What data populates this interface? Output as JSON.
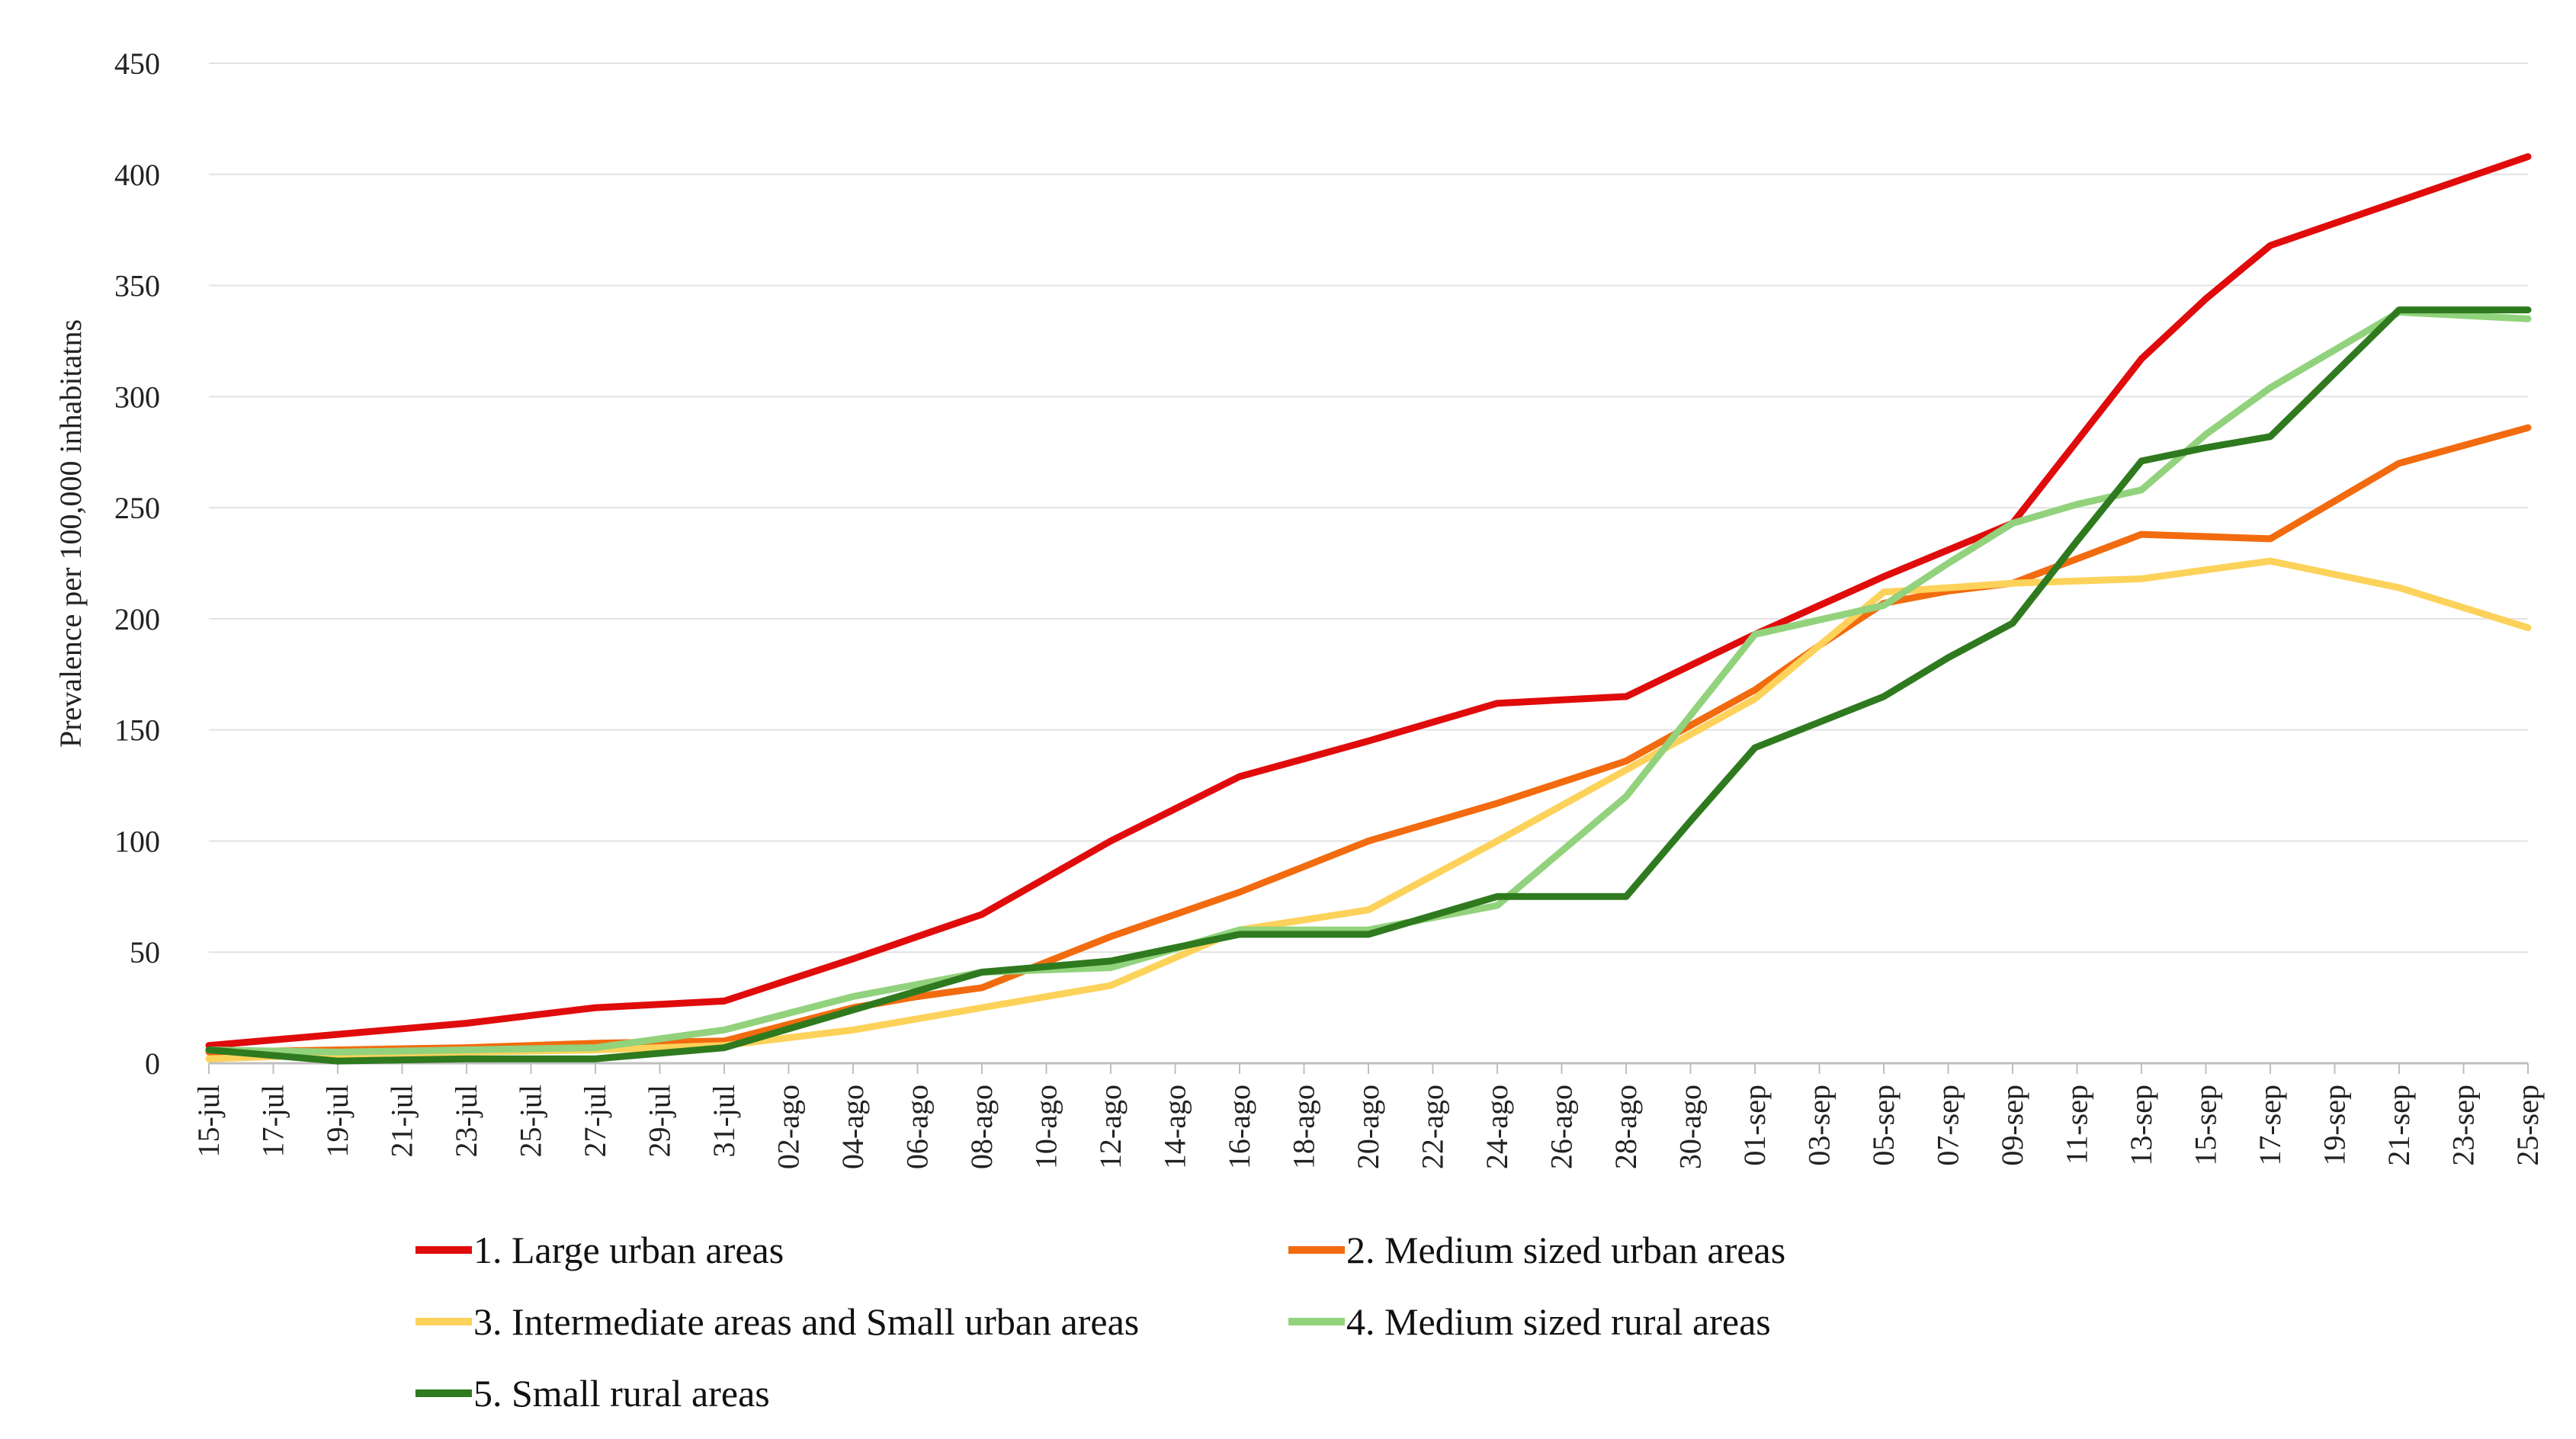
{
  "chart_data": {
    "type": "line",
    "title": "",
    "xlabel": "",
    "ylabel": "Prevalence per 100,000 inhabitatns",
    "ylim": [
      0,
      450
    ],
    "yticks": [
      0,
      50,
      100,
      150,
      200,
      250,
      300,
      350,
      400,
      450
    ],
    "grid": true,
    "legend_position": "bottom",
    "categories": [
      "15-jul",
      "17-jul",
      "19-jul",
      "21-jul",
      "23-jul",
      "25-jul",
      "27-jul",
      "29-jul",
      "31-jul",
      "02-ago",
      "04-ago",
      "06-ago",
      "08-ago",
      "10-ago",
      "12-ago",
      "14-ago",
      "16-ago",
      "18-ago",
      "20-ago",
      "22-ago",
      "24-ago",
      "26-ago",
      "28-ago",
      "30-ago",
      "01-sep",
      "03-sep",
      "05-sep",
      "07-sep",
      "09-sep",
      "11-sep",
      "13-sep",
      "15-sep",
      "17-sep",
      "19-sep",
      "21-sep",
      "23-sep",
      "25-sep"
    ],
    "series": [
      {
        "name": "1. Large urban areas",
        "color": "#e00b0b",
        "values": [
          8,
          10.5,
          13,
          15.5,
          18,
          21.5,
          25,
          26.5,
          28,
          37.5,
          47,
          57,
          67,
          83.5,
          100,
          114.5,
          129,
          137,
          145,
          153.5,
          162,
          163.5,
          165,
          179,
          193,
          206,
          219,
          231,
          243,
          280,
          317,
          344,
          368,
          378,
          388,
          398,
          408
        ]
      },
      {
        "name": "2. Medium sized urban areas",
        "color": "#f26b0f",
        "values": [
          5,
          5.5,
          6,
          6.5,
          7,
          8,
          9,
          9.5,
          10,
          17.5,
          25,
          30,
          34,
          45.5,
          57,
          67,
          77,
          88.5,
          100,
          108.5,
          117,
          126.5,
          136,
          152,
          168,
          188,
          207,
          212.5,
          216,
          227,
          238,
          237,
          236,
          253,
          270,
          278,
          286
        ]
      },
      {
        "name": "3. Intermediate areas and Small urban areas",
        "color": "#fdd25a",
        "values": [
          2,
          3,
          4,
          4.5,
          5,
          5.5,
          6,
          7,
          8,
          11.5,
          15,
          20,
          25,
          30,
          35,
          47.5,
          60,
          64.5,
          69,
          84.5,
          100,
          116,
          132,
          148,
          164,
          188,
          212,
          214,
          216,
          217,
          218,
          222,
          226,
          220,
          214,
          205,
          196
        ]
      },
      {
        "name": "4. Medium sized rural areas",
        "color": "#92d27d",
        "values": [
          6,
          5.5,
          5,
          5.5,
          6,
          6.5,
          7,
          11,
          15,
          22.5,
          30,
          35.5,
          41,
          42,
          43,
          51.5,
          60,
          60,
          60,
          65.5,
          71,
          95.5,
          120,
          156.5,
          193,
          199.5,
          206,
          225,
          243,
          251.5,
          258,
          283,
          304,
          321,
          338,
          336.5,
          335
        ]
      },
      {
        "name": "5. Small rural areas",
        "color": "#2f7a1f",
        "values": [
          6,
          3.5,
          1,
          1.5,
          2,
          2,
          2,
          4.5,
          7,
          15.5,
          24,
          32.5,
          41,
          43.5,
          46,
          52,
          58,
          58,
          58,
          66.5,
          75,
          75,
          75,
          109,
          142,
          153.5,
          165,
          182.5,
          198,
          235,
          271,
          277,
          282,
          310.5,
          339,
          339,
          339
        ]
      }
    ]
  }
}
